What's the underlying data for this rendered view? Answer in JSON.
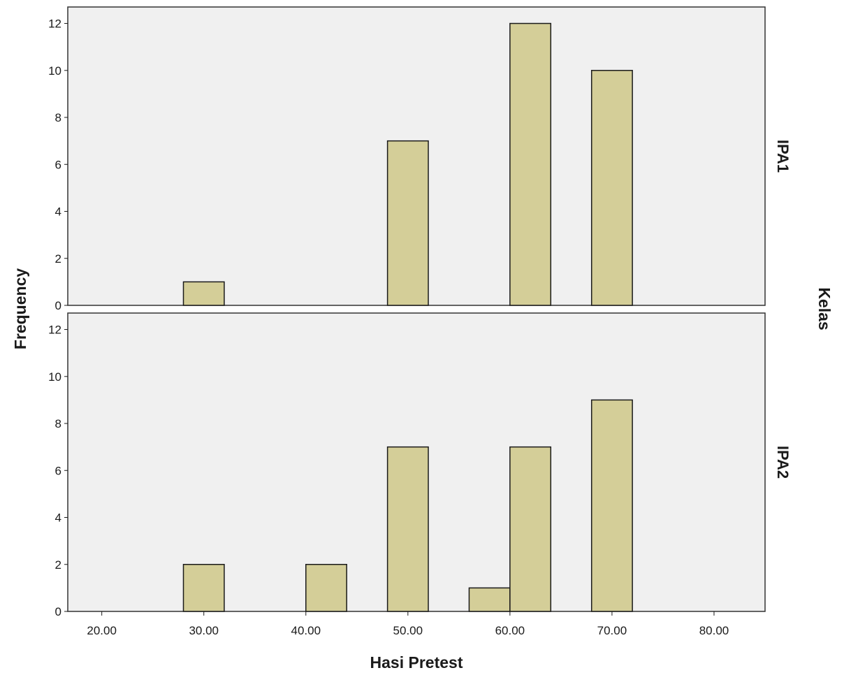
{
  "chart_data": {
    "type": "bar",
    "xlabel": "Hasi Pretest",
    "ylabel": "Frequency",
    "panel_axis_label": "Kelas",
    "x_ticks": [
      "20.00",
      "30.00",
      "40.00",
      "50.00",
      "60.00",
      "70.00",
      "80.00"
    ],
    "xlim": [
      16.667,
      85
    ],
    "bin_width": 4,
    "y_ticks": [
      "0",
      "2",
      "4",
      "6",
      "8",
      "10",
      "12"
    ],
    "ylim": [
      0,
      12.7
    ],
    "grid": false,
    "bar_color": "#d4ce98",
    "panels": [
      {
        "name": "IPA1",
        "bins": [
          {
            "x0": 28,
            "x1": 32,
            "value": 1
          },
          {
            "x0": 48,
            "x1": 52,
            "value": 7
          },
          {
            "x0": 60,
            "x1": 64,
            "value": 12
          },
          {
            "x0": 68,
            "x1": 72,
            "value": 10
          }
        ]
      },
      {
        "name": "IPA2",
        "bins": [
          {
            "x0": 28,
            "x1": 32,
            "value": 2
          },
          {
            "x0": 40,
            "x1": 44,
            "value": 2
          },
          {
            "x0": 48,
            "x1": 52,
            "value": 7
          },
          {
            "x0": 56,
            "x1": 60,
            "value": 1
          },
          {
            "x0": 60,
            "x1": 64,
            "value": 7
          },
          {
            "x0": 68,
            "x1": 72,
            "value": 9
          }
        ]
      }
    ]
  }
}
